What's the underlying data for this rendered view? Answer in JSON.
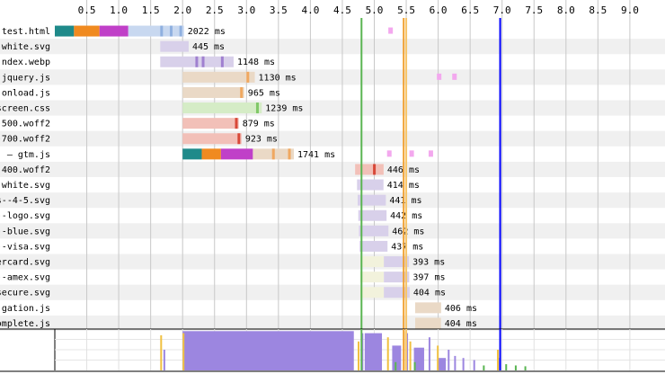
{
  "chart_data": {
    "type": "waterfall",
    "axis": {
      "xmin": 0,
      "xmax": 10,
      "ticks": [
        0.5,
        1.0,
        1.5,
        2.0,
        2.5,
        3.0,
        3.5,
        4.0,
        4.5,
        5.0,
        5.5,
        6.0,
        6.5,
        7.0,
        7.5,
        8.0,
        8.5,
        9.0
      ],
      "grid": true
    },
    "markers": [
      {
        "name": "green",
        "x": 4.8,
        "color": "#5ab552"
      },
      {
        "name": "orange",
        "x": 5.46,
        "color": "#f0a030"
      },
      {
        "name": "orange2",
        "x": 5.5,
        "color": "#f7c56a"
      },
      {
        "name": "blue",
        "x": 6.97,
        "color": "#0000ff"
      }
    ],
    "requests": [
      {
        "label": "test.html",
        "start": 0.0,
        "end": 2.022,
        "duration": "2022 ms",
        "segments": [
          {
            "from": 0.0,
            "to": 0.3,
            "color": "#1f8a8a"
          },
          {
            "from": 0.3,
            "to": 0.7,
            "color": "#f08a20"
          },
          {
            "from": 0.7,
            "to": 1.15,
            "color": "#c040c8"
          },
          {
            "from": 1.15,
            "to": 2.022,
            "color": "#c8d8f0"
          }
        ],
        "chunks": [
          1.65,
          1.8,
          1.95
        ],
        "chunk_color": "#8fb0e0",
        "extras": [
          {
            "x": 5.22,
            "color": "#f3a8ee"
          }
        ]
      },
      {
        "label": "-white.svg",
        "start": 1.65,
        "end": 2.095,
        "duration": "445 ms",
        "segments": [
          {
            "from": 1.65,
            "to": 2.095,
            "color": "#d8d0ea"
          }
        ],
        "chunks": [],
        "chunk_color": "#a898d0",
        "extras": []
      },
      {
        "label": "ndex.webp",
        "start": 1.65,
        "end": 2.798,
        "duration": "1148 ms",
        "segments": [
          {
            "from": 1.65,
            "to": 2.798,
            "color": "#d8d0ea"
          }
        ],
        "chunks": [
          2.2,
          2.3,
          2.6
        ],
        "chunk_color": "#a080d0",
        "extras": []
      },
      {
        "label": "jquery.js",
        "start": 2.0,
        "end": 3.13,
        "duration": "1130 ms",
        "segments": [
          {
            "from": 2.0,
            "to": 3.13,
            "color": "#ead9c6"
          }
        ],
        "chunks": [
          3.0
        ],
        "chunk_color": "#f0a860",
        "extras": [
          {
            "x": 5.98,
            "color": "#f3a8ee"
          },
          {
            "x": 6.22,
            "color": "#f3a8ee"
          }
        ]
      },
      {
        "label": "onload.js",
        "start": 2.0,
        "end": 2.965,
        "duration": "965 ms",
        "segments": [
          {
            "from": 2.0,
            "to": 2.965,
            "color": "#ead9c6"
          }
        ],
        "chunks": [
          2.9
        ],
        "chunk_color": "#f0a860",
        "extras": []
      },
      {
        "label": "screen.css",
        "start": 2.0,
        "end": 3.239,
        "duration": "1239 ms",
        "segments": [
          {
            "from": 2.0,
            "to": 3.239,
            "color": "#d5ecc6"
          }
        ],
        "chunks": [
          3.15
        ],
        "chunk_color": "#80c868",
        "extras": []
      },
      {
        "label": "-500.woff2",
        "start": 2.0,
        "end": 2.879,
        "duration": "879 ms",
        "segments": [
          {
            "from": 2.0,
            "to": 2.879,
            "color": "#f2c0b8"
          }
        ],
        "chunks": [
          2.82
        ],
        "chunk_color": "#d84838",
        "extras": []
      },
      {
        "label": "-700.woff2",
        "start": 2.0,
        "end": 2.923,
        "duration": "923 ms",
        "segments": [
          {
            "from": 2.0,
            "to": 2.923,
            "color": "#f2c0b8"
          }
        ],
        "chunks": [
          2.86
        ],
        "chunk_color": "#d84838",
        "extras": []
      },
      {
        "label": "– gtm.js",
        "start": 2.0,
        "end": 3.741,
        "duration": "1741 ms",
        "segments": [
          {
            "from": 2.0,
            "to": 2.3,
            "color": "#1f8a8a"
          },
          {
            "from": 2.3,
            "to": 2.6,
            "color": "#f08a20"
          },
          {
            "from": 2.6,
            "to": 3.1,
            "color": "#c040c8"
          },
          {
            "from": 3.1,
            "to": 3.741,
            "color": "#ead9c6"
          }
        ],
        "chunks": [
          3.4,
          3.65
        ],
        "chunk_color": "#f0a860",
        "extras": [
          {
            "x": 5.2,
            "color": "#f3a8ee"
          },
          {
            "x": 5.55,
            "color": "#f3a8ee"
          },
          {
            "x": 5.85,
            "color": "#f3a8ee"
          }
        ]
      },
      {
        "label": "400.woff2",
        "start": 4.7,
        "end": 5.146,
        "duration": "446 ms",
        "segments": [
          {
            "from": 4.7,
            "to": 5.146,
            "color": "#f2c0b8"
          }
        ],
        "chunks": [
          4.98
        ],
        "chunk_color": "#d84838",
        "extras": []
      },
      {
        "label": "-white.svg",
        "start": 4.73,
        "end": 5.144,
        "duration": "414 ms",
        "segments": [
          {
            "from": 4.73,
            "to": 5.144,
            "color": "#d8d0ea"
          }
        ],
        "chunks": [],
        "chunk_color": "#a898d0",
        "extras": []
      },
      {
        "label": "s--4-5.svg",
        "start": 4.74,
        "end": 5.181,
        "duration": "441 ms",
        "segments": [
          {
            "from": 4.74,
            "to": 5.181,
            "color": "#d8d0ea"
          }
        ],
        "chunks": [],
        "chunk_color": "#a898d0",
        "extras": []
      },
      {
        "label": "--logo.svg",
        "start": 4.75,
        "end": 5.192,
        "duration": "442 ms",
        "segments": [
          {
            "from": 4.75,
            "to": 5.192,
            "color": "#d8d0ea"
          }
        ],
        "chunks": [],
        "chunk_color": "#a898d0",
        "extras": []
      },
      {
        "label": "--blue.svg",
        "start": 4.76,
        "end": 5.222,
        "duration": "462 ms",
        "segments": [
          {
            "from": 4.76,
            "to": 5.222,
            "color": "#d8d0ea"
          }
        ],
        "chunks": [],
        "chunk_color": "#a898d0",
        "extras": []
      },
      {
        "label": "--visa.svg",
        "start": 4.77,
        "end": 5.207,
        "duration": "437 ms",
        "segments": [
          {
            "from": 4.77,
            "to": 5.207,
            "color": "#d8d0ea"
          }
        ],
        "chunks": [],
        "chunk_color": "#a898d0",
        "extras": []
      },
      {
        "label": "ercard.svg",
        "start": 4.78,
        "end": 5.543,
        "duration": "393 ms",
        "segments": [
          {
            "from": 4.78,
            "to": 5.15,
            "color": "#f2f2dc"
          },
          {
            "from": 5.15,
            "to": 5.543,
            "color": "#d8d0ea"
          }
        ],
        "chunks": [],
        "chunk_color": "#a898d0",
        "extras": []
      },
      {
        "label": "--amex.svg",
        "start": 4.78,
        "end": 5.547,
        "duration": "397 ms",
        "segments": [
          {
            "from": 4.78,
            "to": 5.15,
            "color": "#f2f2dc"
          },
          {
            "from": 5.15,
            "to": 5.547,
            "color": "#d8d0ea"
          }
        ],
        "chunks": [],
        "chunk_color": "#a898d0",
        "extras": []
      },
      {
        "label": "secure.svg",
        "start": 4.78,
        "end": 5.554,
        "duration": "404 ms",
        "segments": [
          {
            "from": 4.78,
            "to": 5.15,
            "color": "#f2f2dc"
          },
          {
            "from": 5.15,
            "to": 5.554,
            "color": "#d8d0ea"
          }
        ],
        "chunks": [],
        "chunk_color": "#a898d0",
        "extras": []
      },
      {
        "label": "gation.js",
        "start": 5.64,
        "end": 6.046,
        "duration": "406 ms",
        "segments": [
          {
            "from": 5.64,
            "to": 6.046,
            "color": "#ead9c6"
          }
        ],
        "chunks": [],
        "chunk_color": "#f0a860",
        "extras": []
      },
      {
        "label": "omplete.js",
        "start": 5.64,
        "end": 6.044,
        "duration": "404 ms",
        "segments": [
          {
            "from": 5.64,
            "to": 6.044,
            "color": "#ead9c6"
          }
        ],
        "chunks": [],
        "chunk_color": "#f0a860",
        "extras": []
      }
    ],
    "activity": {
      "color": "#9c86e0",
      "blocks": [
        {
          "from": 2.0,
          "to": 4.68,
          "level": 0.95
        },
        {
          "from": 4.85,
          "to": 5.12,
          "level": 0.9
        },
        {
          "from": 5.28,
          "to": 5.42,
          "level": 0.6
        },
        {
          "from": 5.62,
          "to": 5.78,
          "level": 0.55
        },
        {
          "from": 6.0,
          "to": 6.12,
          "level": 0.3
        }
      ],
      "spikes": [
        {
          "x": 1.65,
          "level": 0.85,
          "color": "#f0c040"
        },
        {
          "x": 1.7,
          "level": 0.5,
          "color": "#9c86e0"
        },
        {
          "x": 2.0,
          "level": 0.9,
          "color": "#f0c040"
        },
        {
          "x": 4.74,
          "level": 0.7,
          "color": "#f0c040"
        },
        {
          "x": 4.8,
          "level": 0.9,
          "color": "#9c86e0"
        },
        {
          "x": 5.2,
          "level": 0.8,
          "color": "#f0c040"
        },
        {
          "x": 5.45,
          "level": 0.95,
          "color": "#f0c040"
        },
        {
          "x": 5.5,
          "level": 0.9,
          "color": "#9c86e0"
        },
        {
          "x": 5.55,
          "level": 0.7,
          "color": "#f0c040"
        },
        {
          "x": 5.85,
          "level": 0.8,
          "color": "#9c86e0"
        },
        {
          "x": 5.98,
          "level": 0.6,
          "color": "#f0c040"
        },
        {
          "x": 6.15,
          "level": 0.5,
          "color": "#9c86e0"
        },
        {
          "x": 6.25,
          "level": 0.35,
          "color": "#9c86e0"
        },
        {
          "x": 6.38,
          "level": 0.3,
          "color": "#9c86e0"
        },
        {
          "x": 6.55,
          "level": 0.25,
          "color": "#9c86e0"
        },
        {
          "x": 6.92,
          "level": 0.5,
          "color": "#f0c040"
        },
        {
          "x": 6.95,
          "level": 0.3,
          "color": "#9c86e0"
        },
        {
          "x": 5.32,
          "level": 0.2,
          "color": "#5ab552"
        },
        {
          "x": 5.62,
          "level": 0.2,
          "color": "#5ab552"
        },
        {
          "x": 6.7,
          "level": 0.12,
          "color": "#5ab552"
        },
        {
          "x": 7.05,
          "level": 0.15,
          "color": "#5ab552"
        },
        {
          "x": 7.2,
          "level": 0.12,
          "color": "#5ab552"
        },
        {
          "x": 7.35,
          "level": 0.1,
          "color": "#5ab552"
        }
      ]
    }
  }
}
